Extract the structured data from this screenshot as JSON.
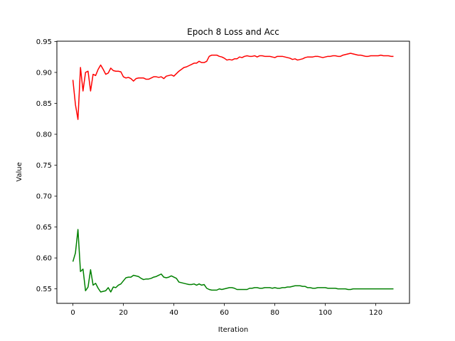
{
  "chart_data": {
    "type": "line",
    "title": "Epoch 8 Loss and Acc",
    "xlabel": "Iteration",
    "ylabel": "Value",
    "xlim": [
      -6.35,
      133.35
    ],
    "ylim": [
      0.5266,
      0.9505
    ],
    "xticks": [
      0,
      20,
      40,
      60,
      80,
      100,
      120
    ],
    "xtick_labels": [
      "0",
      "20",
      "40",
      "60",
      "80",
      "100",
      "120"
    ],
    "yticks": [
      0.55,
      0.6,
      0.65,
      0.7,
      0.75,
      0.8,
      0.85,
      0.9,
      0.95
    ],
    "ytick_labels": [
      "0.55",
      "0.60",
      "0.65",
      "0.70",
      "0.75",
      "0.80",
      "0.85",
      "0.90",
      "0.95"
    ],
    "grid": false,
    "x": [
      0,
      1,
      2,
      3,
      4,
      5,
      6,
      7,
      8,
      9,
      10,
      11,
      12,
      13,
      14,
      15,
      16,
      17,
      18,
      19,
      20,
      21,
      22,
      23,
      24,
      25,
      26,
      27,
      28,
      29,
      30,
      31,
      32,
      33,
      34,
      35,
      36,
      37,
      38,
      39,
      40,
      41,
      42,
      43,
      44,
      45,
      46,
      47,
      48,
      49,
      50,
      51,
      52,
      53,
      54,
      55,
      56,
      57,
      58,
      59,
      60,
      61,
      62,
      63,
      64,
      65,
      66,
      67,
      68,
      69,
      70,
      71,
      72,
      73,
      74,
      75,
      76,
      77,
      78,
      79,
      80,
      81,
      82,
      83,
      84,
      85,
      86,
      87,
      88,
      89,
      90,
      91,
      92,
      93,
      94,
      95,
      96,
      97,
      98,
      99,
      100,
      101,
      102,
      103,
      104,
      105,
      106,
      107,
      108,
      109,
      110,
      111,
      112,
      113,
      114,
      115,
      116,
      117,
      118,
      119,
      120,
      121,
      122,
      123,
      124,
      125,
      126,
      127
    ],
    "series": [
      {
        "color": "#ff0000",
        "values": [
          0.888,
          0.848,
          0.824,
          0.908,
          0.87,
          0.9,
          0.902,
          0.87,
          0.897,
          0.895,
          0.905,
          0.912,
          0.905,
          0.897,
          0.899,
          0.907,
          0.903,
          0.902,
          0.902,
          0.901,
          0.893,
          0.891,
          0.892,
          0.89,
          0.886,
          0.89,
          0.891,
          0.891,
          0.891,
          0.889,
          0.889,
          0.891,
          0.893,
          0.893,
          0.892,
          0.893,
          0.89,
          0.894,
          0.895,
          0.896,
          0.894,
          0.898,
          0.902,
          0.905,
          0.908,
          0.909,
          0.911,
          0.913,
          0.915,
          0.915,
          0.918,
          0.916,
          0.916,
          0.918,
          0.926,
          0.928,
          0.928,
          0.928,
          0.926,
          0.925,
          0.923,
          0.92,
          0.921,
          0.92,
          0.922,
          0.922,
          0.925,
          0.924,
          0.926,
          0.927,
          0.926,
          0.926,
          0.927,
          0.925,
          0.927,
          0.927,
          0.926,
          0.926,
          0.926,
          0.925,
          0.924,
          0.926,
          0.926,
          0.926,
          0.925,
          0.924,
          0.923,
          0.921,
          0.922,
          0.92,
          0.921,
          0.922,
          0.924,
          0.925,
          0.925,
          0.925,
          0.926,
          0.926,
          0.925,
          0.924,
          0.925,
          0.926,
          0.926,
          0.927,
          0.927,
          0.926,
          0.926,
          0.928,
          0.929,
          0.93,
          0.931,
          0.93,
          0.929,
          0.928,
          0.928,
          0.927,
          0.926,
          0.926,
          0.927,
          0.927,
          0.927,
          0.927,
          0.928,
          0.927,
          0.927,
          0.927,
          0.926,
          0.926
        ]
      },
      {
        "color": "#008000",
        "values": [
          0.594,
          0.608,
          0.646,
          0.578,
          0.582,
          0.547,
          0.553,
          0.581,
          0.556,
          0.559,
          0.551,
          0.545,
          0.546,
          0.547,
          0.552,
          0.545,
          0.553,
          0.552,
          0.556,
          0.558,
          0.563,
          0.568,
          0.569,
          0.569,
          0.572,
          0.571,
          0.57,
          0.567,
          0.565,
          0.566,
          0.566,
          0.567,
          0.569,
          0.57,
          0.572,
          0.574,
          0.569,
          0.568,
          0.569,
          0.571,
          0.569,
          0.567,
          0.561,
          0.56,
          0.559,
          0.558,
          0.557,
          0.557,
          0.558,
          0.556,
          0.558,
          0.556,
          0.557,
          0.551,
          0.549,
          0.548,
          0.548,
          0.548,
          0.55,
          0.549,
          0.55,
          0.551,
          0.552,
          0.552,
          0.551,
          0.549,
          0.549,
          0.549,
          0.549,
          0.549,
          0.551,
          0.551,
          0.552,
          0.552,
          0.551,
          0.551,
          0.552,
          0.552,
          0.552,
          0.551,
          0.552,
          0.551,
          0.551,
          0.552,
          0.552,
          0.553,
          0.553,
          0.554,
          0.555,
          0.555,
          0.555,
          0.554,
          0.554,
          0.552,
          0.552,
          0.551,
          0.551,
          0.552,
          0.552,
          0.552,
          0.552,
          0.551,
          0.551,
          0.551,
          0.551,
          0.55,
          0.55,
          0.55,
          0.55,
          0.549,
          0.549,
          0.55,
          0.55,
          0.55,
          0.55,
          0.55,
          0.55,
          0.55,
          0.55,
          0.55,
          0.55,
          0.55,
          0.55,
          0.55,
          0.55,
          0.55,
          0.55,
          0.55
        ]
      }
    ]
  }
}
